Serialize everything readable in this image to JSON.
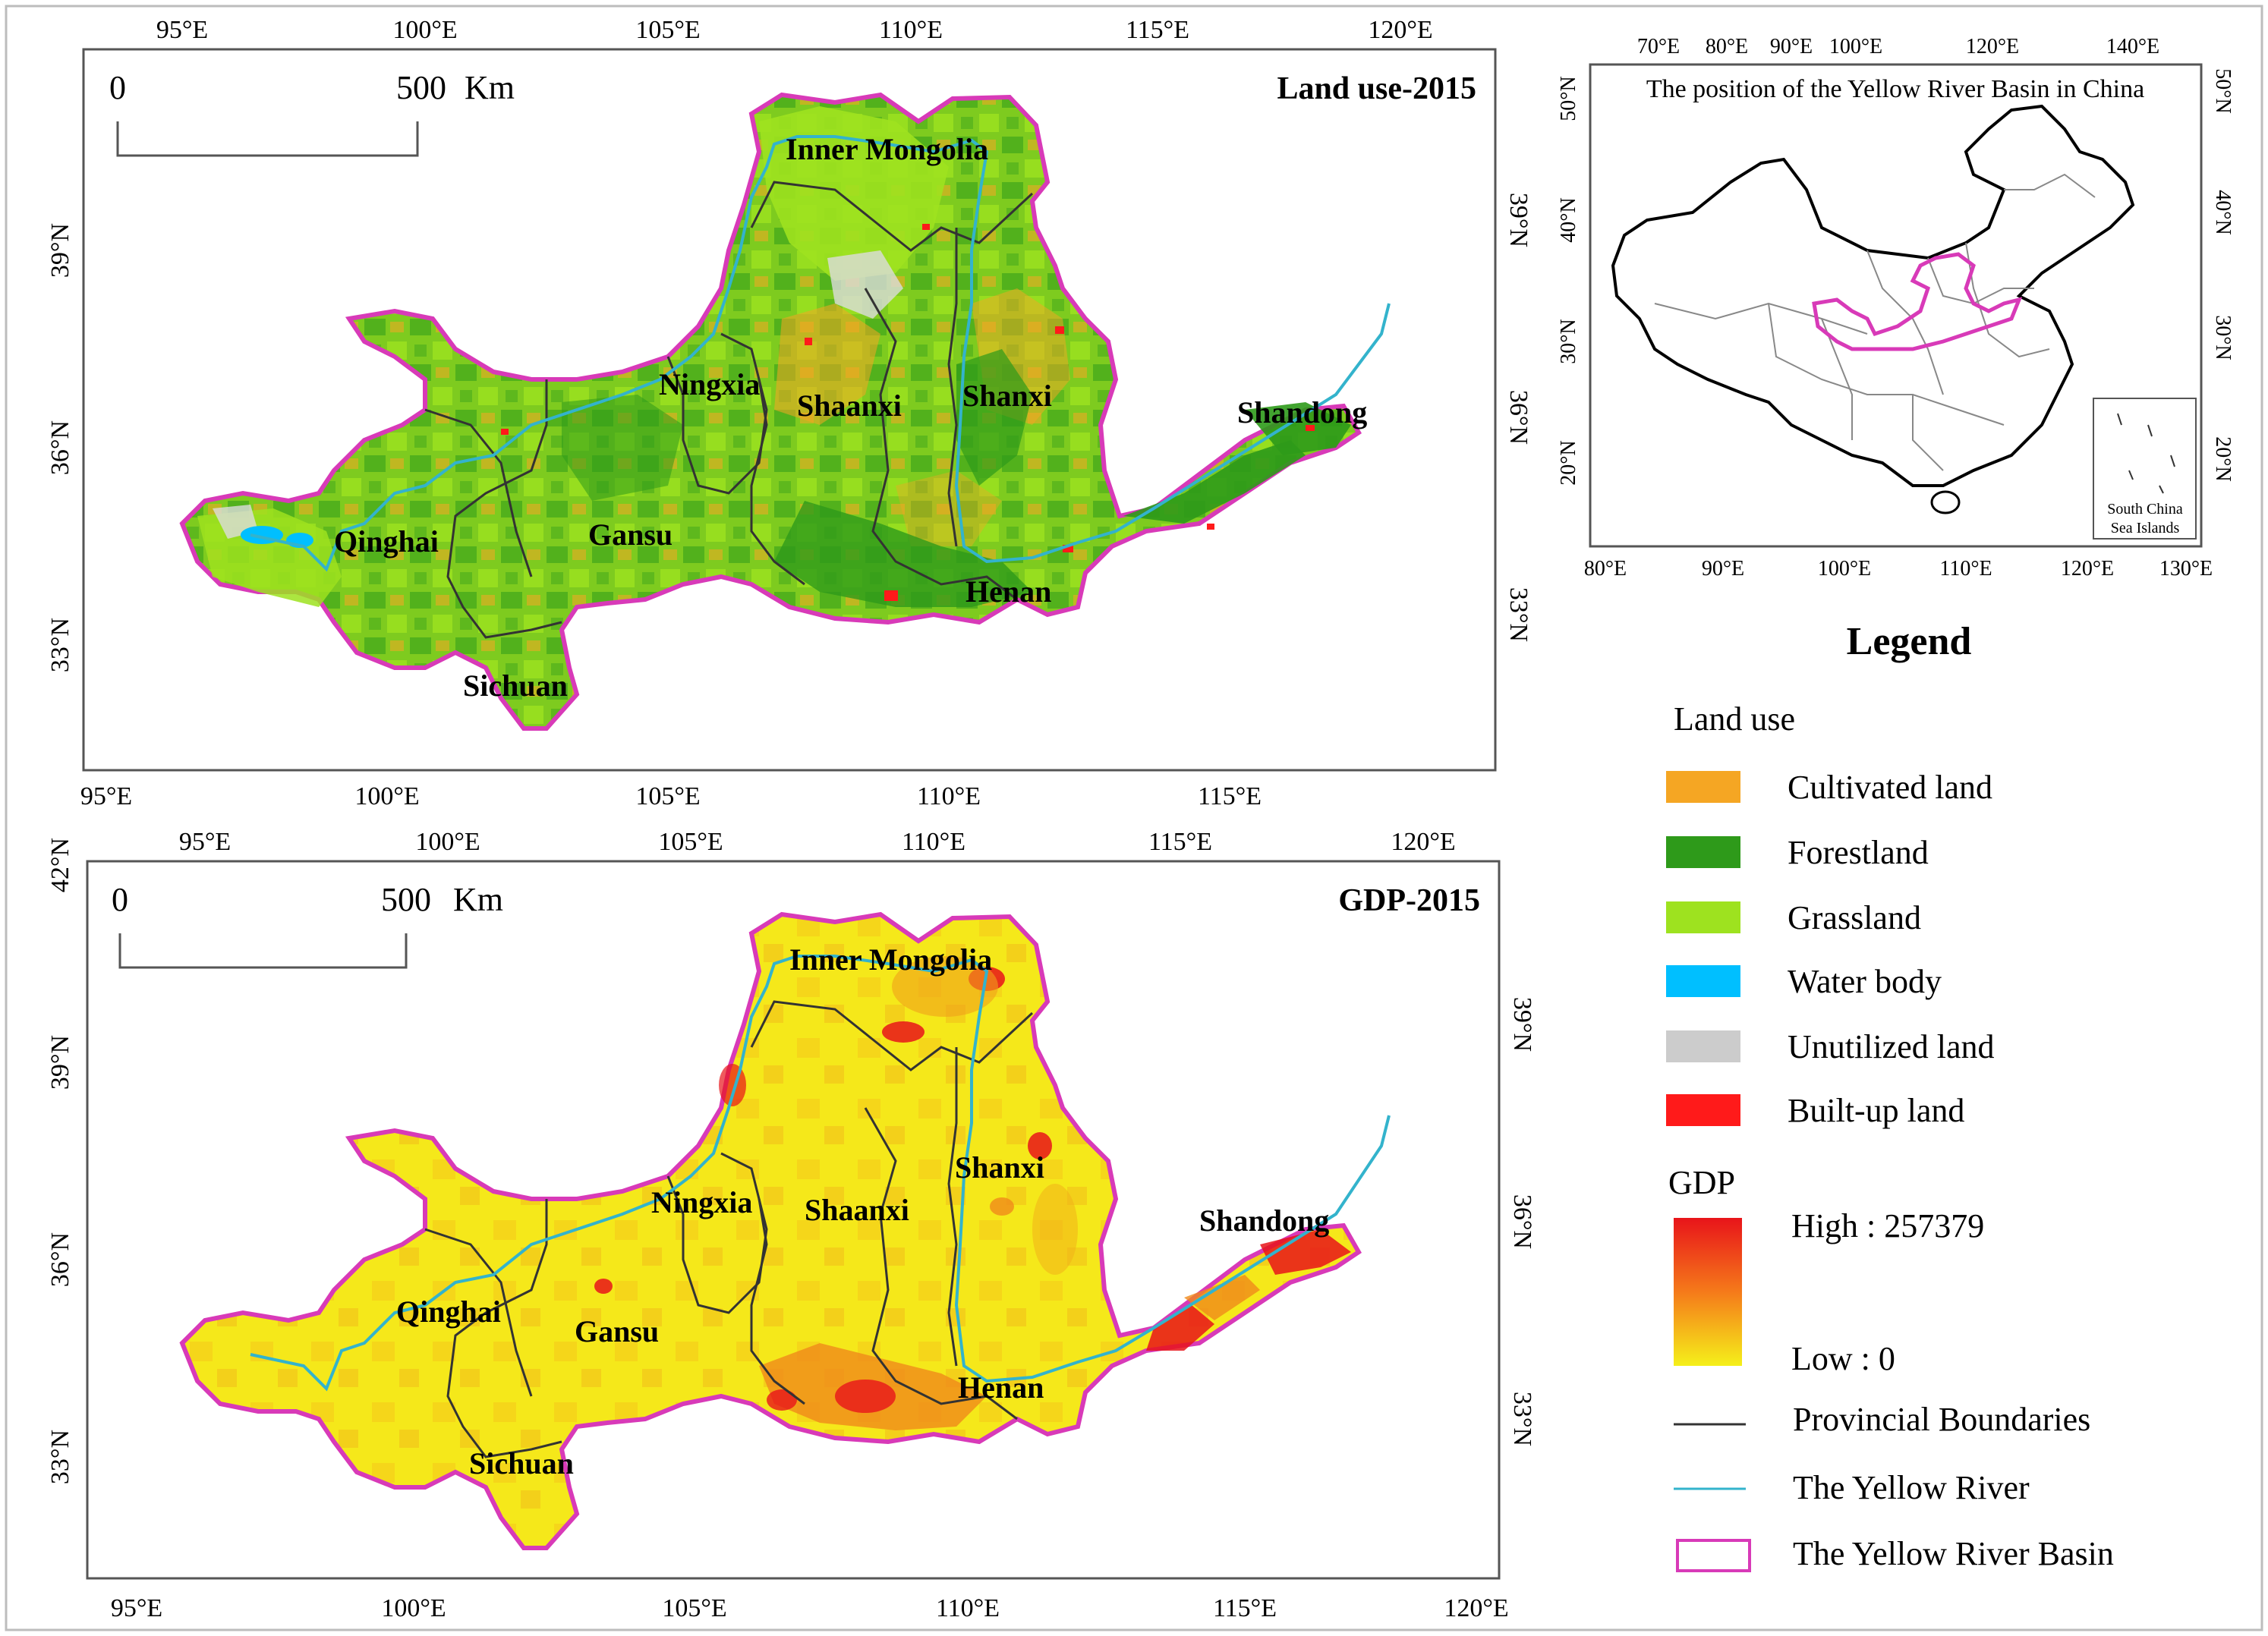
{
  "colors": {
    "cultivated": "#f5a623",
    "forest": "#2e9a1a",
    "grass": "#9ee21f",
    "water": "#00bfff",
    "unutilized": "#cccccc",
    "builtup": "#ff1a1a",
    "gdp_high": "#e8141a",
    "gdp_low": "#f5f01a",
    "boundary": "#333333",
    "river": "#33b3cc",
    "basin": "#d83ab8"
  },
  "map1": {
    "title": "Land use-2015",
    "scale_zero": "0",
    "scale_max": "500",
    "scale_unit": "Km",
    "lon_ticks": [
      "95°E",
      "100°E",
      "105°E",
      "110°E",
      "115°E",
      "120°E"
    ],
    "lat_ticks_left": [
      "39°N",
      "36°N",
      "33°N"
    ],
    "lat_ticks_right": [
      "39°N",
      "36°N",
      "33°N"
    ],
    "provinces": [
      "Inner Mongolia",
      "Ningxia",
      "Shaanxi",
      "Shanxi",
      "Shandong",
      "Qinghai",
      "Gansu",
      "Henan",
      "Sichuan"
    ]
  },
  "map2": {
    "title": "GDP-2015",
    "scale_zero": "0",
    "scale_max": "500",
    "scale_unit": "Km",
    "lon_ticks": [
      "95°E",
      "100°E",
      "105°E",
      "110°E",
      "115°E",
      "120°E"
    ],
    "lat_ticks_left": [
      "42°N",
      "39°N",
      "36°N",
      "33°N"
    ],
    "lat_ticks_right": [
      "39°N",
      "36°N",
      "33°N"
    ],
    "provinces": [
      "Inner Mongolia",
      "Ningxia",
      "Shaanxi",
      "Shanxi",
      "Shandong",
      "Qinghai",
      "Gansu",
      "Henan",
      "Sichuan"
    ]
  },
  "inset": {
    "title": "The position of the Yellow River Basin in China",
    "top_ticks": [
      "70°E",
      "80°E",
      "90°E",
      "100°E",
      "120°E",
      "140°E"
    ],
    "bottom_ticks": [
      "80°E",
      "90°E",
      "100°E",
      "110°E",
      "120°E",
      "130°E"
    ],
    "left_ticks": [
      "50°N",
      "40°N",
      "30°N",
      "20°N"
    ],
    "right_ticks": [
      "50°N",
      "40°N",
      "30°N",
      "20°N"
    ],
    "sea_label_1": "South China",
    "sea_label_2": "Sea Islands"
  },
  "legend": {
    "title": "Legend",
    "land_use_heading": "Land use",
    "land_use_items": [
      "Cultivated land",
      "Forestland",
      "Grassland",
      "Water body",
      "Unutilized land",
      "Built-up land"
    ],
    "gdp_heading": "GDP",
    "gdp_high": "High : 257379",
    "gdp_low": "Low : 0",
    "line_items": [
      "Provincial Boundaries",
      "The Yellow River",
      "The Yellow River Basin"
    ]
  }
}
